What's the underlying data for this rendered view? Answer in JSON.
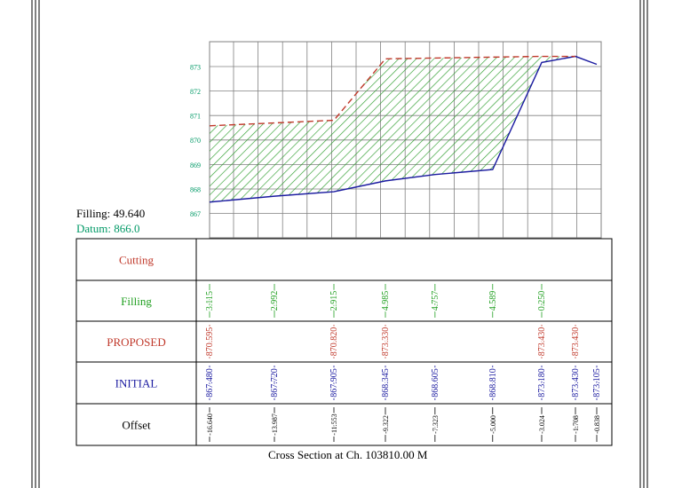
{
  "summary": {
    "filling_text": "Filling: 49.640",
    "datum_text": "Datum: 866.0"
  },
  "caption": "Cross Section at Ch. 103810.00 M",
  "colors": {
    "grid": "#808080",
    "frame": "#000000",
    "initial_line": "#1a1aa0",
    "proposed_line": "#c0392b",
    "hatch": "#2e9e2e",
    "elevation_labels": "#009966",
    "cutting": "#c0392b",
    "filling": "#22a022",
    "proposed": "#c0392b",
    "initial": "#1a1aa0",
    "offset": "#000000",
    "datum": "#009966"
  },
  "chart_data": {
    "type": "area",
    "title": "Cross Section at Ch. 103810.00 M",
    "ylim": [
      866.0,
      874.0
    ],
    "y_ticks": [
      "867",
      "868",
      "869",
      "870",
      "871",
      "872",
      "873"
    ],
    "datum": 866.0,
    "filling_area": 49.64,
    "series": [
      {
        "name": "INITIAL",
        "x": [
          -16.64,
          -13.987,
          -11.553,
          -9.322,
          -7.323,
          -5.0,
          -3.024,
          -1.708,
          -0.838
        ],
        "y": [
          867.48,
          867.72,
          867.905,
          868.345,
          868.605,
          868.81,
          873.18,
          873.43,
          873.105
        ]
      },
      {
        "name": "PROPOSED",
        "x": [
          -16.64,
          -11.553,
          -9.322,
          -3.024,
          -1.708
        ],
        "y": [
          870.595,
          870.82,
          873.33,
          873.43,
          873.43
        ]
      }
    ],
    "table": {
      "row_labels": [
        "Cutting",
        "Filling",
        "PROPOSED",
        "INITIAL",
        "Offset"
      ],
      "filling": [
        {
          "x": -16.64,
          "v": "3.115"
        },
        {
          "x": -13.987,
          "v": "2.992"
        },
        {
          "x": -11.553,
          "v": "2.915"
        },
        {
          "x": -9.322,
          "v": "4.985"
        },
        {
          "x": -7.323,
          "v": "4.757"
        },
        {
          "x": -5.0,
          "v": "4.589"
        },
        {
          "x": -3.024,
          "v": "0.250"
        }
      ],
      "proposed": [
        {
          "x": -16.64,
          "v": "870.595"
        },
        {
          "x": -11.553,
          "v": "870.820"
        },
        {
          "x": -9.322,
          "v": "873.330"
        },
        {
          "x": -3.024,
          "v": "873.430"
        },
        {
          "x": -1.708,
          "v": "873.430"
        }
      ],
      "initial": [
        {
          "x": -16.64,
          "v": "867.480"
        },
        {
          "x": -13.987,
          "v": "867.720"
        },
        {
          "x": -11.553,
          "v": "867.905"
        },
        {
          "x": -9.322,
          "v": "868.345"
        },
        {
          "x": -7.323,
          "v": "868.605"
        },
        {
          "x": -5.0,
          "v": "868.810"
        },
        {
          "x": -3.024,
          "v": "873.180"
        },
        {
          "x": -1.708,
          "v": "873.430"
        },
        {
          "x": -0.838,
          "v": "873.105"
        }
      ],
      "offset": [
        {
          "x": -16.64,
          "v": "-16.640"
        },
        {
          "x": -13.987,
          "v": "-13.987"
        },
        {
          "x": -11.553,
          "v": "-11.553"
        },
        {
          "x": -9.322,
          "v": "-9.322"
        },
        {
          "x": -7.323,
          "v": "-7.323"
        },
        {
          "x": -5.0,
          "v": "-5.000"
        },
        {
          "x": -3.024,
          "v": "-3.024"
        },
        {
          "x": -1.708,
          "v": "-1.708"
        },
        {
          "x": -0.838,
          "v": "-0.838"
        }
      ]
    }
  }
}
